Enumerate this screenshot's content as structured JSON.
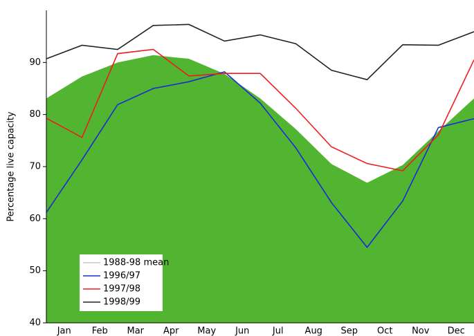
{
  "chart_data": {
    "type": "line",
    "y_label": "Percentage live capacity",
    "x": [
      0,
      1,
      2,
      3,
      4,
      5,
      6,
      7,
      8,
      9,
      10,
      11,
      12
    ],
    "xlim": [
      0,
      12
    ],
    "xticks": [
      {
        "value": 0.5,
        "label": "Jan"
      },
      {
        "value": 1.5,
        "label": "Feb"
      },
      {
        "value": 2.5,
        "label": "Mar"
      },
      {
        "value": 3.5,
        "label": "Apr"
      },
      {
        "value": 4.5,
        "label": "May"
      },
      {
        "value": 5.5,
        "label": "Jun"
      },
      {
        "value": 6.5,
        "label": "Jul"
      },
      {
        "value": 7.5,
        "label": "Aug"
      },
      {
        "value": 8.5,
        "label": "Sep"
      },
      {
        "value": 9.5,
        "label": "Oct"
      },
      {
        "value": 10.5,
        "label": "Nov"
      },
      {
        "value": 11.5,
        "label": "Dec"
      }
    ],
    "ylim": [
      40,
      100
    ],
    "yticks": [
      40,
      50,
      60,
      70,
      80,
      90
    ],
    "legend": "lower left",
    "series": [
      {
        "name": "1988-98 mean",
        "kind": "area",
        "color": "#52b531",
        "legend_color": "#aaaaaa",
        "values": [
          83.1,
          87.3,
          90.0,
          91.4,
          90.7,
          87.8,
          83.1,
          77.2,
          70.5,
          66.9,
          70.3,
          76.8,
          83.1
        ]
      },
      {
        "name": "1996/97",
        "kind": "line",
        "color": "#1a2bd6",
        "values": [
          61.2,
          71.3,
          81.9,
          85.0,
          86.3,
          88.2,
          82.2,
          73.6,
          63.1,
          54.5,
          63.4,
          77.5,
          79.2
        ]
      },
      {
        "name": "1997/98",
        "kind": "line",
        "color": "#f01c1c",
        "values": [
          79.3,
          75.6,
          91.7,
          92.5,
          87.4,
          87.9,
          87.9,
          81.2,
          73.8,
          70.6,
          69.2,
          76.1,
          90.5
        ]
      },
      {
        "name": "1998/99",
        "kind": "line",
        "color": "#222222",
        "values": [
          90.7,
          93.3,
          92.5,
          97.1,
          97.3,
          94.1,
          95.3,
          93.6,
          88.5,
          86.7,
          93.4,
          93.3,
          95.9
        ]
      }
    ]
  }
}
